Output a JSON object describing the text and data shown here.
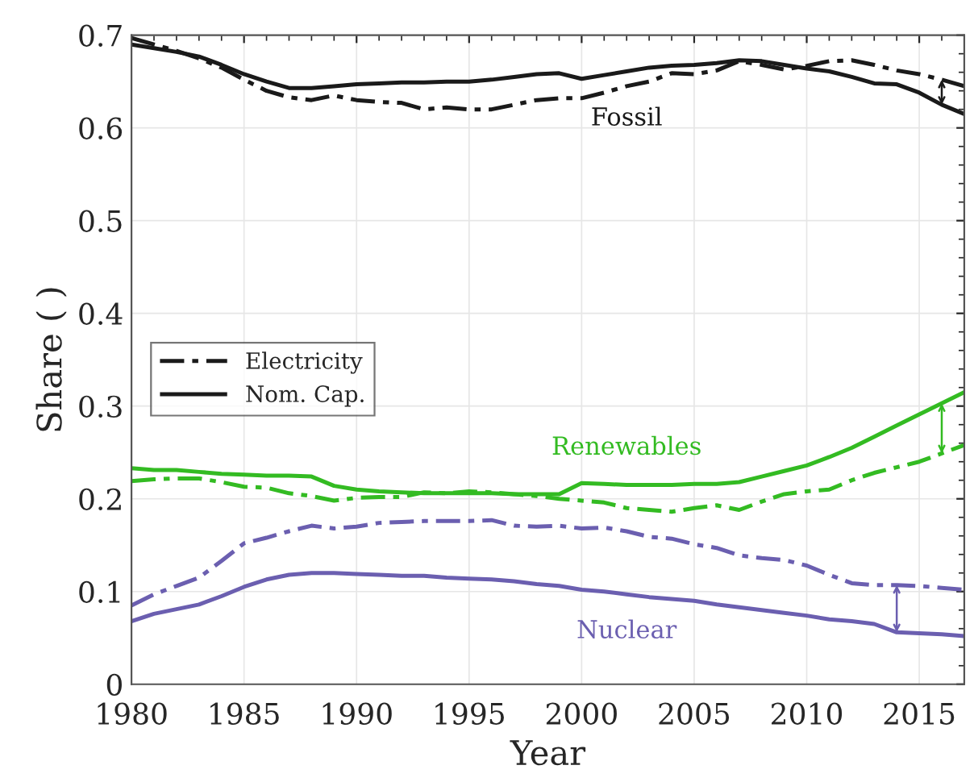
{
  "chart_data": {
    "type": "line",
    "xlabel": "Year",
    "ylabel": "Share ( )",
    "x": [
      1980,
      1981,
      1982,
      1983,
      1984,
      1985,
      1986,
      1987,
      1988,
      1989,
      1990,
      1991,
      1992,
      1993,
      1994,
      1995,
      1996,
      1997,
      1998,
      1999,
      2000,
      2001,
      2002,
      2003,
      2004,
      2005,
      2006,
      2007,
      2008,
      2009,
      2010,
      2011,
      2012,
      2013,
      2014,
      2015,
      2016,
      2017
    ],
    "series": [
      {
        "name": "Electricity",
        "color": "#1a1a1a",
        "line_style": "dashed",
        "values": [
          0.697,
          0.69,
          0.683,
          0.675,
          0.665,
          0.652,
          0.64,
          0.633,
          0.63,
          0.635,
          0.63,
          0.628,
          0.627,
          0.62,
          0.622,
          0.62,
          0.62,
          0.625,
          0.63,
          0.632,
          0.632,
          0.638,
          0.645,
          0.65,
          0.659,
          0.658,
          0.662,
          0.672,
          0.668,
          0.663,
          0.667,
          0.672,
          0.673,
          0.668,
          0.662,
          0.658,
          0.652,
          0.645
        ]
      },
      {
        "name": "Nom. Cap.",
        "color": "#1a1a1a",
        "line_style": "solid",
        "values": [
          0.69,
          0.686,
          0.682,
          0.677,
          0.668,
          0.658,
          0.65,
          0.643,
          0.643,
          0.645,
          0.647,
          0.648,
          0.649,
          0.649,
          0.65,
          0.65,
          0.652,
          0.655,
          0.658,
          0.659,
          0.653,
          0.657,
          0.661,
          0.665,
          0.667,
          0.668,
          0.67,
          0.673,
          0.672,
          0.668,
          0.664,
          0.661,
          0.655,
          0.648,
          0.647,
          0.638,
          0.625,
          0.615
        ]
      },
      {
        "color": "#33bb22",
        "line_style": "dashed",
        "values": [
          0.219,
          0.221,
          0.222,
          0.222,
          0.218,
          0.213,
          0.212,
          0.206,
          0.203,
          0.198,
          0.201,
          0.202,
          0.202,
          0.207,
          0.206,
          0.208,
          0.207,
          0.205,
          0.203,
          0.2,
          0.198,
          0.196,
          0.19,
          0.188,
          0.186,
          0.19,
          0.193,
          0.188,
          0.197,
          0.205,
          0.208,
          0.21,
          0.22,
          0.228,
          0.234,
          0.24,
          0.249,
          0.258
        ]
      },
      {
        "color": "#33bb22",
        "line_style": "solid",
        "values": [
          0.233,
          0.231,
          0.231,
          0.229,
          0.227,
          0.226,
          0.225,
          0.225,
          0.224,
          0.214,
          0.21,
          0.208,
          0.207,
          0.206,
          0.206,
          0.206,
          0.206,
          0.205,
          0.205,
          0.205,
          0.217,
          0.216,
          0.215,
          0.215,
          0.215,
          0.216,
          0.216,
          0.218,
          0.224,
          0.23,
          0.236,
          0.245,
          0.255,
          0.267,
          0.279,
          0.291,
          0.303,
          0.315
        ]
      },
      {
        "color": "#6b5fb0",
        "line_style": "dashed",
        "values": [
          0.085,
          0.097,
          0.106,
          0.115,
          0.133,
          0.152,
          0.158,
          0.165,
          0.171,
          0.168,
          0.17,
          0.174,
          0.175,
          0.176,
          0.176,
          0.176,
          0.177,
          0.171,
          0.17,
          0.171,
          0.168,
          0.169,
          0.165,
          0.159,
          0.157,
          0.151,
          0.147,
          0.139,
          0.136,
          0.134,
          0.128,
          0.118,
          0.109,
          0.107,
          0.107,
          0.106,
          0.104,
          0.102
        ]
      },
      {
        "color": "#6b5fb0",
        "line_style": "solid",
        "values": [
          0.068,
          0.076,
          0.081,
          0.086,
          0.095,
          0.105,
          0.113,
          0.118,
          0.12,
          0.12,
          0.119,
          0.118,
          0.117,
          0.117,
          0.115,
          0.114,
          0.113,
          0.111,
          0.108,
          0.106,
          0.102,
          0.1,
          0.097,
          0.094,
          0.092,
          0.09,
          0.086,
          0.083,
          0.08,
          0.077,
          0.074,
          0.07,
          0.068,
          0.065,
          0.056,
          0.055,
          0.054,
          0.052
        ]
      }
    ],
    "annotations": [
      "Fossil",
      "Renewables",
      "Nuclear"
    ],
    "xlim": [
      1980,
      2017
    ],
    "ylim": [
      0,
      0.7
    ],
    "xticks": [
      1980,
      1985,
      1990,
      1995,
      2000,
      2005,
      2010,
      2015
    ],
    "yticks": [
      0,
      0.1,
      0.2,
      0.3,
      0.4,
      0.5,
      0.6,
      0.7
    ],
    "grid": true,
    "legend": "left",
    "marker": "none"
  }
}
